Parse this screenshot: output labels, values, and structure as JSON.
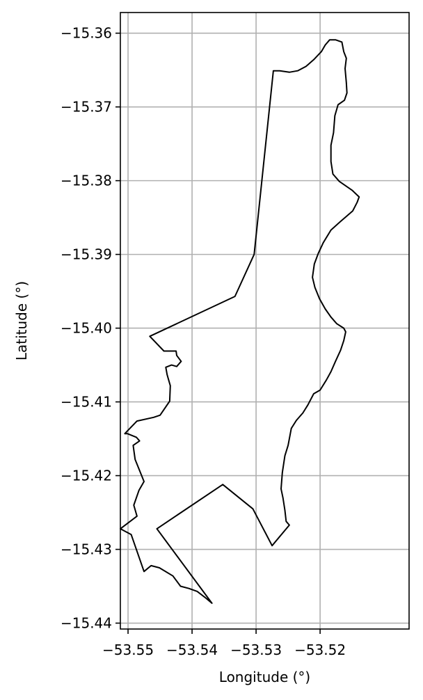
{
  "chart_data": {
    "type": "map",
    "title": "",
    "xlabel": "Longitude (°)",
    "ylabel": "Latitude (°)",
    "xlim": [
      -53.5512,
      -53.5061
    ],
    "ylim": [
      -15.4408,
      -15.3572
    ],
    "grid": true,
    "x_ticks": [
      {
        "value": -53.55,
        "label": "−53.55"
      },
      {
        "value": -53.54,
        "label": "−53.54"
      },
      {
        "value": -53.53,
        "label": "−53.53"
      },
      {
        "value": -53.52,
        "label": "−53.52"
      }
    ],
    "y_ticks": [
      {
        "value": -15.36,
        "label": "−15.36"
      },
      {
        "value": -15.37,
        "label": "−15.37"
      },
      {
        "value": -15.38,
        "label": "−15.38"
      },
      {
        "value": -15.39,
        "label": "−15.39"
      },
      {
        "value": -15.4,
        "label": "−15.40"
      },
      {
        "value": -15.41,
        "label": "−15.41"
      },
      {
        "value": -15.42,
        "label": "−15.42"
      },
      {
        "value": -15.43,
        "label": "−15.43"
      },
      {
        "value": -15.44,
        "label": "−15.44"
      }
    ],
    "line_color": "#000000",
    "grid_color": "#b0b0b0",
    "boundary": [
      [
        -53.5273,
        -15.3651
      ],
      [
        -53.5263,
        -15.3651
      ],
      [
        -53.5248,
        -15.3653
      ],
      [
        -53.5235,
        -15.3651
      ],
      [
        -53.5222,
        -15.3645
      ],
      [
        -53.521,
        -15.3636
      ],
      [
        -53.5198,
        -15.3625
      ],
      [
        -53.5192,
        -15.3616
      ],
      [
        -53.5185,
        -15.3609
      ],
      [
        -53.5176,
        -15.3609
      ],
      [
        -53.5166,
        -15.3612
      ],
      [
        -53.5163,
        -15.3625
      ],
      [
        -53.5159,
        -15.3634
      ],
      [
        -53.5161,
        -15.3648
      ],
      [
        -53.5159,
        -15.3667
      ],
      [
        -53.5158,
        -15.3681
      ],
      [
        -53.5162,
        -15.3691
      ],
      [
        -53.5172,
        -15.3697
      ],
      [
        -53.5177,
        -15.3712
      ],
      [
        -53.5179,
        -15.3735
      ],
      [
        -53.5183,
        -15.3752
      ],
      [
        -53.5183,
        -15.3774
      ],
      [
        -53.518,
        -15.3791
      ],
      [
        -53.517,
        -15.3801
      ],
      [
        -53.515,
        -15.3813
      ],
      [
        -53.5139,
        -15.3822
      ],
      [
        -53.5142,
        -15.3829
      ],
      [
        -53.5149,
        -15.3841
      ],
      [
        -53.5169,
        -15.3856
      ],
      [
        -53.5183,
        -15.3867
      ],
      [
        -53.5195,
        -15.3884
      ],
      [
        -53.5203,
        -15.3899
      ],
      [
        -53.5209,
        -15.3913
      ],
      [
        -53.5212,
        -15.3931
      ],
      [
        -53.5208,
        -15.3945
      ],
      [
        -53.5201,
        -15.396
      ],
      [
        -53.5192,
        -15.3974
      ],
      [
        -53.5183,
        -15.3985
      ],
      [
        -53.5174,
        -15.3994
      ],
      [
        -53.5163,
        -15.4
      ],
      [
        -53.516,
        -15.4005
      ],
      [
        -53.5163,
        -15.4017
      ],
      [
        -53.5168,
        -15.403
      ],
      [
        -53.5176,
        -15.4045
      ],
      [
        -53.5183,
        -15.4059
      ],
      [
        -53.519,
        -15.407
      ],
      [
        -53.52,
        -15.4084
      ],
      [
        -53.521,
        -15.4089
      ],
      [
        -53.5219,
        -15.4104
      ],
      [
        -53.5227,
        -15.4115
      ],
      [
        -53.5237,
        -15.4125
      ],
      [
        -53.5245,
        -15.4136
      ],
      [
        -53.525,
        -15.4159
      ],
      [
        -53.5255,
        -15.4173
      ],
      [
        -53.5259,
        -15.4196
      ],
      [
        -53.5261,
        -15.4218
      ],
      [
        -53.5258,
        -15.423
      ],
      [
        -53.5255,
        -15.4247
      ],
      [
        -53.5253,
        -15.4262
      ],
      [
        -53.5248,
        -15.4267
      ],
      [
        -53.5275,
        -15.4295
      ],
      [
        -53.5305,
        -15.4245
      ],
      [
        -53.5352,
        -15.4212
      ],
      [
        -53.5455,
        -15.4272
      ],
      [
        -53.5369,
        -15.4373
      ],
      [
        -53.538,
        -15.4365
      ],
      [
        -53.5392,
        -15.4357
      ],
      [
        -53.5405,
        -15.4353
      ],
      [
        -53.5418,
        -15.435
      ],
      [
        -53.543,
        -15.4336
      ],
      [
        -53.5451,
        -15.4325
      ],
      [
        -53.5464,
        -15.4322
      ],
      [
        -53.5475,
        -15.433
      ],
      [
        -53.5495,
        -15.428
      ],
      [
        -53.5512,
        -15.4272
      ],
      [
        -53.5486,
        -15.4255
      ],
      [
        -53.5491,
        -15.424
      ],
      [
        -53.5483,
        -15.422
      ],
      [
        -53.5475,
        -15.4208
      ],
      [
        -53.5489,
        -15.4178
      ],
      [
        -53.5492,
        -15.4159
      ],
      [
        -53.5482,
        -15.4153
      ],
      [
        -53.5487,
        -15.4148
      ],
      [
        -53.5501,
        -15.4143
      ],
      [
        -53.5505,
        -15.4143
      ],
      [
        -53.5486,
        -15.4126
      ],
      [
        -53.546,
        -15.4121
      ],
      [
        -53.545,
        -15.4118
      ],
      [
        -53.5435,
        -15.4099
      ],
      [
        -53.5434,
        -15.4078
      ],
      [
        -53.5437,
        -15.4069
      ],
      [
        -53.5439,
        -15.4063
      ],
      [
        -53.5441,
        -15.4053
      ],
      [
        -53.5432,
        -15.405
      ],
      [
        -53.5424,
        -15.4052
      ],
      [
        -53.5417,
        -15.4045
      ],
      [
        -53.5424,
        -15.4037
      ],
      [
        -53.5425,
        -15.4031
      ],
      [
        -53.5444,
        -15.4031
      ],
      [
        -53.5466,
        -15.4011
      ],
      [
        -53.5333,
        -15.3957
      ],
      [
        -53.5303,
        -15.39
      ],
      [
        -53.5273,
        -15.3651
      ]
    ]
  }
}
